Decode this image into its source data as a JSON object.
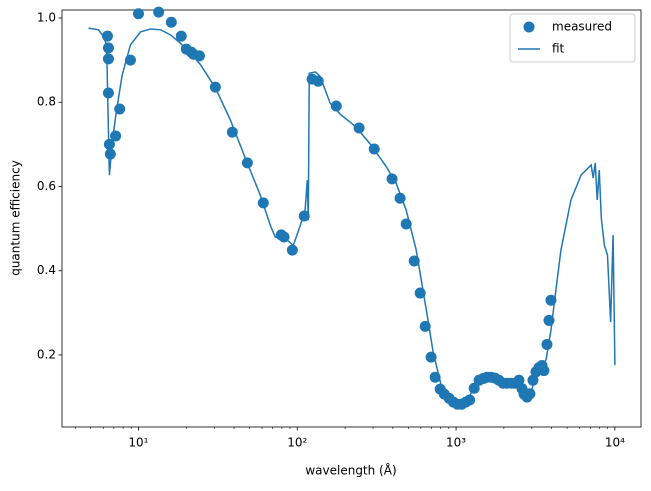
{
  "chart_data": {
    "type": "scatter",
    "xlabel": "wavelength (Å)",
    "ylabel": "quantum efficiency",
    "xscale": "log",
    "xlim": [
      3.3,
      14600
    ],
    "ylim": [
      0.029,
      1.019
    ],
    "xticks": [
      {
        "value": 10,
        "label": "10¹"
      },
      {
        "value": 100,
        "label": "10²"
      },
      {
        "value": 1000,
        "label": "10³"
      },
      {
        "value": 10000,
        "label": "10⁴"
      }
    ],
    "yticks": [
      0.2,
      0.4,
      0.6,
      0.8,
      {
        "value": 1.0,
        "label": "1.0"
      }
    ],
    "legend": "upper right",
    "series": [
      {
        "name": "measured",
        "type": "scatter",
        "color": "#1f77b4",
        "x": [
          6.38,
          6.47,
          6.47,
          6.47,
          6.56,
          6.65,
          7.18,
          7.62,
          8.9,
          10,
          13.4,
          16.1,
          18.6,
          20.0,
          21.5,
          22.2,
          24.2,
          30.5,
          39.0,
          48.5,
          61.1,
          79.3,
          82.5,
          93.1,
          110.6,
          124,
          135.5,
          176,
          245,
          305,
          395,
          444,
          485,
          545,
          594,
          639,
          696,
          738,
          794,
          843,
          905,
          962,
          1021,
          1084,
          1150,
          1217,
          1300,
          1396,
          1479,
          1567,
          1660,
          1758,
          1862,
          1976,
          2094,
          2218,
          2350,
          2489,
          2600,
          2679,
          2799,
          2919,
          3048,
          3184,
          3327,
          3476,
          3575,
          3735,
          3846,
          3957
        ],
        "values": [
          0.957,
          0.929,
          0.903,
          0.822,
          0.7,
          0.677,
          0.72,
          0.784,
          0.9,
          1.01,
          1.014,
          0.99,
          0.957,
          0.926,
          0.919,
          0.914,
          0.91,
          0.836,
          0.729,
          0.656,
          0.561,
          0.485,
          0.48,
          0.449,
          0.53,
          0.855,
          0.85,
          0.791,
          0.739,
          0.689,
          0.618,
          0.572,
          0.511,
          0.423,
          0.347,
          0.268,
          0.195,
          0.147,
          0.119,
          0.107,
          0.097,
          0.088,
          0.083,
          0.083,
          0.088,
          0.093,
          0.121,
          0.14,
          0.144,
          0.147,
          0.147,
          0.145,
          0.14,
          0.133,
          0.133,
          0.133,
          0.133,
          0.14,
          0.12,
          0.107,
          0.1,
          0.108,
          0.14,
          0.16,
          0.17,
          0.175,
          0.163,
          0.225,
          0.282,
          0.33
        ]
      },
      {
        "name": "fit",
        "type": "line",
        "color": "#1f77b4",
        "x": [
          4.85,
          5.6,
          6.0,
          6.3,
          6.56,
          6.86,
          7.27,
          7.9,
          8.9,
          10.3,
          11.9,
          13.8,
          15.9,
          18.4,
          21.2,
          24.5,
          30.5,
          37.9,
          47.1,
          58.4,
          67.6,
          72.7,
          84,
          94.4,
          104.5,
          112,
          115.6,
          117.3,
          119,
          129.9,
          139,
          150,
          161,
          186,
          232,
          289,
          362,
          419,
          485,
          561,
          650,
          717,
          805,
          930,
          1045,
          1174,
          1317,
          1522,
          1660,
          1919,
          2386,
          2566,
          2800,
          2968,
          3184,
          3683,
          3957,
          4250,
          4572,
          5290,
          6122,
          7085,
          7300,
          7520,
          7740,
          7970,
          8210,
          8580,
          8980,
          9400,
          9740,
          10000
        ],
        "values": [
          0.976,
          0.972,
          0.957,
          0.936,
          0.627,
          0.71,
          0.78,
          0.865,
          0.936,
          0.967,
          0.974,
          0.972,
          0.96,
          0.94,
          0.917,
          0.89,
          0.834,
          0.758,
          0.667,
          0.58,
          0.508,
          0.48,
          0.477,
          0.46,
          0.508,
          0.544,
          0.615,
          0.52,
          0.869,
          0.872,
          0.862,
          0.829,
          0.798,
          0.772,
          0.743,
          0.7,
          0.648,
          0.608,
          0.544,
          0.449,
          0.306,
          0.207,
          0.128,
          0.097,
          0.083,
          0.093,
          0.126,
          0.147,
          0.147,
          0.135,
          0.133,
          0.138,
          0.105,
          0.112,
          0.152,
          0.188,
          0.259,
          0.354,
          0.449,
          0.568,
          0.627,
          0.651,
          0.62,
          0.656,
          0.568,
          0.639,
          0.525,
          0.461,
          0.437,
          0.278,
          0.485,
          0.176
        ]
      }
    ]
  }
}
